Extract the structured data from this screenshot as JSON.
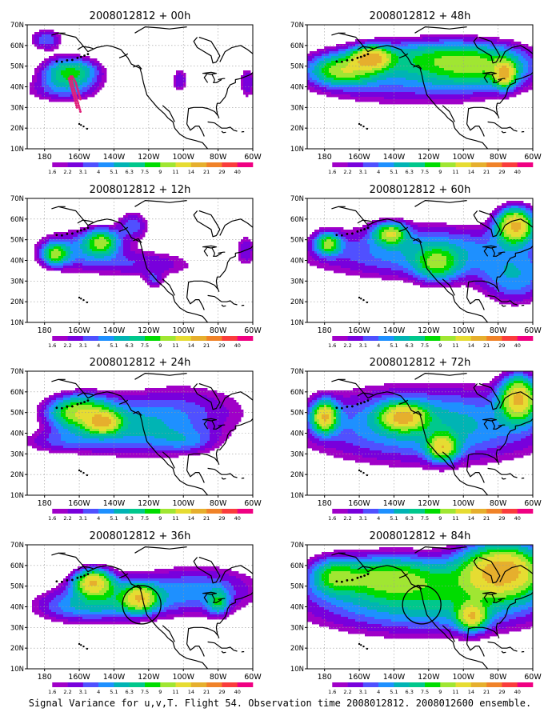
{
  "panels": [
    {
      "title": "2008012812 + 00h",
      "field": "f00",
      "track": true,
      "circle": false
    },
    {
      "title": "2008012812 + 48h",
      "field": "f48",
      "track": false,
      "circle": false
    },
    {
      "title": "2008012812 + 12h",
      "field": "f12",
      "track": false,
      "circle": false
    },
    {
      "title": "2008012812 + 60h",
      "field": "f60",
      "track": false,
      "circle": false
    },
    {
      "title": "2008012812 + 24h",
      "field": "f24",
      "track": false,
      "circle": false
    },
    {
      "title": "2008012812 + 72h",
      "field": "f72",
      "track": false,
      "circle": false
    },
    {
      "title": "2008012812 + 36h",
      "field": "f36",
      "track": false,
      "circle": true
    },
    {
      "title": "2008012812 + 84h",
      "field": "f84",
      "track": false,
      "circle": true
    }
  ],
  "lat_labels": [
    "70N",
    "60N",
    "50N",
    "40N",
    "30N",
    "20N",
    "10N"
  ],
  "lon_labels": [
    "180",
    "160W",
    "140W",
    "120W",
    "100W",
    "80W",
    "60W"
  ],
  "colorbar": {
    "labels": [
      "1.6",
      "2.2",
      "3.1",
      "4",
      "5.1",
      "6.3",
      "7.5",
      "9",
      "11",
      "14",
      "21",
      "29",
      "40"
    ],
    "colors": [
      "#a000c8",
      "#7800dc",
      "#5050ff",
      "#1e90ff",
      "#00b4b4",
      "#00c88c",
      "#00dc00",
      "#a0e632",
      "#e6dc32",
      "#e6af2d",
      "#f08228",
      "#fa3c3c",
      "#f00082"
    ]
  },
  "caption": "Signal Variance for u,v,T. Flight 54. Observation time 2008012812. 2008012600 ensemble."
}
